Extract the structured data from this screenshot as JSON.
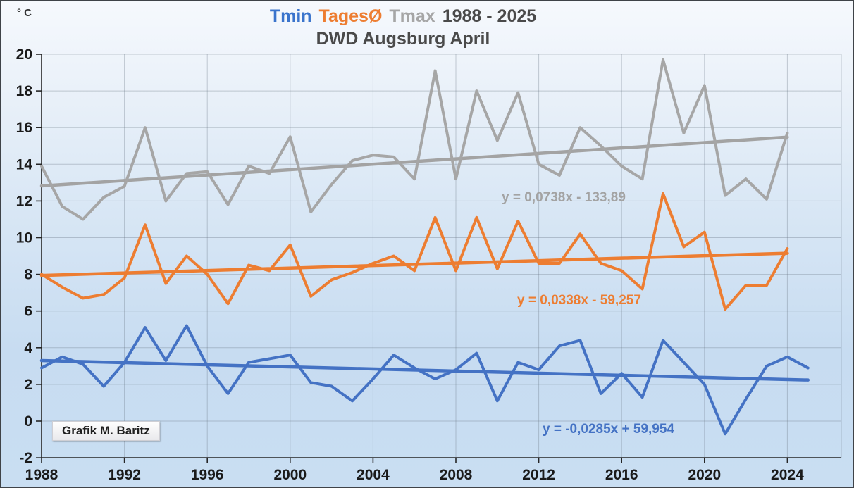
{
  "frame": {
    "unit_label": "° C",
    "credit": "Grafik M. Baritz"
  },
  "title": {
    "part_tmin": "Tmin",
    "part_tavg": "TagesØ",
    "part_tmax": "Tmax",
    "part_years": "1988 - 2025",
    "line2": "DWD Augsburg April"
  },
  "chart_data": {
    "type": "line",
    "title": "Tmin TagesØ Tmax 1988 - 2025",
    "subtitle": "DWD Augsburg April",
    "ylabel": "° C",
    "xlabel": "",
    "grid": true,
    "legend_position": "in-title",
    "xlim": [
      1988,
      2026.6
    ],
    "ylim": [
      -2,
      20
    ],
    "x_ticks": [
      1988,
      1992,
      1996,
      2000,
      2004,
      2008,
      2012,
      2016,
      2020,
      2024
    ],
    "y_ticks": [
      -2,
      0,
      2,
      4,
      6,
      8,
      10,
      12,
      14,
      16,
      18,
      20
    ],
    "x": [
      1988,
      1989,
      1990,
      1991,
      1992,
      1993,
      1994,
      1995,
      1996,
      1997,
      1998,
      1999,
      2000,
      2001,
      2002,
      2003,
      2004,
      2005,
      2006,
      2007,
      2008,
      2009,
      2010,
      2011,
      2012,
      2013,
      2014,
      2015,
      2016,
      2017,
      2018,
      2019,
      2020,
      2021,
      2022,
      2023,
      2024,
      2025
    ],
    "series": [
      {
        "name": "Tmax",
        "color": "#A6A6A6",
        "values": [
          13.9,
          11.7,
          11.0,
          12.2,
          12.8,
          16.0,
          12.0,
          13.5,
          13.6,
          11.8,
          13.9,
          13.5,
          15.5,
          11.4,
          12.9,
          14.2,
          14.5,
          14.4,
          13.2,
          19.1,
          13.2,
          18.0,
          15.3,
          17.9,
          14.0,
          13.4,
          16.0,
          15.0,
          13.9,
          13.2,
          19.7,
          15.7,
          18.3,
          12.3,
          13.2,
          12.1,
          15.7
        ]
      },
      {
        "name": "TagesØ",
        "color": "#ED7D31",
        "values": [
          8.0,
          7.3,
          6.7,
          6.9,
          7.8,
          10.7,
          7.5,
          9.0,
          8.0,
          6.4,
          8.5,
          8.2,
          9.6,
          6.8,
          7.7,
          8.1,
          8.6,
          9.0,
          8.2,
          11.1,
          8.2,
          11.1,
          8.3,
          10.9,
          8.6,
          8.6,
          10.2,
          8.6,
          8.2,
          7.2,
          12.4,
          9.5,
          10.3,
          6.1,
          7.4,
          7.4,
          9.4
        ]
      },
      {
        "name": "Tmin",
        "color": "#4472C4",
        "values": [
          2.9,
          3.5,
          3.1,
          1.9,
          3.2,
          5.1,
          3.3,
          5.2,
          3.0,
          1.5,
          3.2,
          3.4,
          3.6,
          2.1,
          1.9,
          1.1,
          2.3,
          3.6,
          2.9,
          2.3,
          2.8,
          3.7,
          1.1,
          3.2,
          2.8,
          4.1,
          4.4,
          1.5,
          2.6,
          1.3,
          4.4,
          3.2,
          2.0,
          -0.7,
          1.2,
          3.0,
          3.5,
          2.9
        ]
      }
    ],
    "trendlines": [
      {
        "series": "Tmax",
        "equation": "y = 0,0738x - 133,89",
        "color": "#A3A3A3",
        "x1": 1988,
        "y1": 12.82,
        "x2": 2024,
        "y2": 15.48
      },
      {
        "series": "TagesØ",
        "equation": "y = 0,0338x - 59,257",
        "color": "#ED7D31",
        "x1": 1988,
        "y1": 7.94,
        "x2": 2024,
        "y2": 9.15
      },
      {
        "series": "Tmin",
        "equation": "y = -0,0285x + 59,954",
        "color": "#4472C4",
        "x1": 1988,
        "y1": 3.3,
        "x2": 2025,
        "y2": 2.24
      }
    ]
  }
}
